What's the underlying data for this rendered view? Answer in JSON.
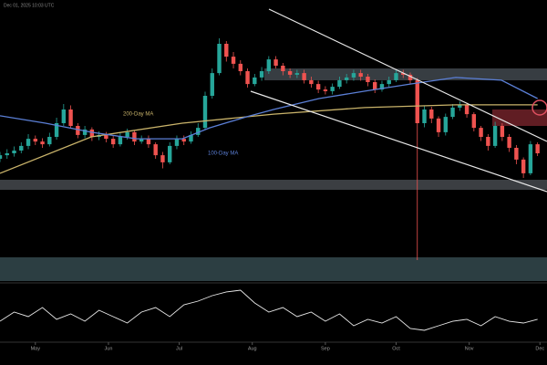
{
  "chart_data": {
    "type": "candlestick",
    "timestamp": "Dec 01, 2025 10:03 UTC",
    "x": [
      -15,
      -12,
      -9,
      -6,
      -3,
      0,
      3,
      6,
      9,
      12,
      15,
      18,
      21,
      24,
      27,
      30,
      33,
      36,
      39,
      42,
      45,
      48,
      51,
      54,
      57,
      60,
      63,
      66,
      69,
      72,
      75,
      78,
      81,
      84,
      87,
      90,
      93,
      96,
      99,
      102,
      105,
      108,
      111,
      114,
      117,
      120,
      123,
      126,
      129,
      132,
      135,
      138,
      141,
      144,
      147,
      150,
      153,
      156,
      159,
      162,
      165,
      168,
      171,
      174,
      177,
      180,
      183,
      186,
      189,
      192,
      195,
      198,
      201,
      204,
      207,
      210,
      213
    ],
    "open": [
      42,
      43.3,
      44,
      45,
      46.7,
      49.3,
      48.3,
      47.3,
      50,
      55,
      60,
      54,
      50.7,
      52.7,
      50,
      50.7,
      49.3,
      47.3,
      50,
      51.7,
      48.3,
      49.3,
      47.3,
      43.3,
      40.7,
      46.7,
      49.3,
      48.3,
      50.7,
      53.3,
      65,
      73.3,
      84,
      79.3,
      76.7,
      74,
      69.3,
      71.7,
      74,
      78.3,
      76,
      74,
      72.7,
      73.3,
      70.7,
      69.3,
      67.3,
      66.7,
      68.3,
      70.7,
      71.7,
      73.3,
      72,
      70,
      67.3,
      69.3,
      70.7,
      73.3,
      72.7,
      70.7,
      55,
      60,
      56.7,
      51.7,
      57.3,
      60.7,
      61.7,
      58.3,
      53.3,
      50,
      46.7,
      54,
      50,
      46,
      41.7,
      36.7,
      47.3
    ],
    "high": [
      44.5,
      45.5,
      46.5,
      48,
      51,
      50.5,
      49.5,
      51.5,
      57,
      62,
      61.5,
      55,
      54,
      53.5,
      52,
      51.8,
      50.5,
      51.5,
      53,
      52.5,
      50.5,
      50.5,
      48,
      44.5,
      48,
      50.5,
      50.5,
      52,
      55,
      66.5,
      75,
      86,
      85,
      81,
      78,
      75,
      73,
      75.5,
      79.5,
      79.5,
      77,
      75,
      74.5,
      74.5,
      72,
      70.5,
      68.5,
      69.5,
      72,
      73,
      74.5,
      74.5,
      73,
      71,
      70.5,
      72,
      74.5,
      74.5,
      73.5,
      71.5,
      61.5,
      61,
      57.5,
      58.5,
      62,
      63,
      62.5,
      59,
      54,
      51,
      55.5,
      55,
      51,
      47,
      42.5,
      48.5,
      48
    ],
    "low": [
      40.8,
      42,
      42.8,
      44,
      45.5,
      47,
      46,
      46.5,
      49,
      54,
      53,
      49.5,
      49.5,
      48.5,
      48.8,
      48,
      46,
      46.5,
      49,
      47,
      47.5,
      46,
      42,
      38.5,
      40,
      45.5,
      47,
      47.5,
      50,
      52.5,
      64,
      72.5,
      77.5,
      75,
      72.5,
      68,
      68.5,
      70.5,
      73,
      75,
      72.5,
      71.5,
      71.5,
      69.5,
      68,
      66,
      65.5,
      65.5,
      67.5,
      69.5,
      70.5,
      70.5,
      68.5,
      66,
      66.5,
      68,
      70,
      71.5,
      69.5,
      5,
      53.5,
      55,
      50,
      50.5,
      56.5,
      59.5,
      57,
      52,
      48.5,
      45,
      46,
      48.5,
      44.5,
      40,
      35,
      36,
      43
    ],
    "close": [
      43.3,
      44,
      45,
      46.7,
      49.3,
      48.3,
      47.3,
      50,
      55,
      60,
      54,
      50.7,
      52.7,
      50,
      50.7,
      49.3,
      47.3,
      50,
      51.7,
      48.3,
      49.3,
      47.3,
      43.3,
      40.7,
      46.7,
      49.3,
      48.3,
      50.7,
      53.3,
      65,
      73.3,
      84,
      79.3,
      76.7,
      74,
      69.3,
      71.7,
      74,
      78.3,
      76,
      74,
      72.7,
      73.3,
      70.7,
      69.3,
      67.3,
      66.7,
      68.3,
      70.7,
      71.7,
      73.3,
      72,
      70,
      67.3,
      69.3,
      70.7,
      73.3,
      72.7,
      70.7,
      55,
      60,
      56.7,
      51.7,
      57.3,
      60.7,
      61.7,
      58.3,
      53.3,
      50,
      46.7,
      54,
      50,
      46,
      41.7,
      36.7,
      47.3,
      44
    ],
    "up_color": "#26a69a",
    "down_color": "#ef5350",
    "xlim": [
      -15,
      217
    ],
    "xticks": [
      {
        "value": 0,
        "label": "May"
      },
      {
        "value": 31,
        "label": "Jun"
      },
      {
        "value": 61,
        "label": "Jul"
      },
      {
        "value": 92,
        "label": "Aug"
      },
      {
        "value": 123,
        "label": "Sep"
      },
      {
        "value": 153,
        "label": "Oct"
      },
      {
        "value": 184,
        "label": "Nov"
      },
      {
        "value": 214,
        "label": "Dec"
      }
    ],
    "ylim": [
      0,
      100
    ],
    "series": [
      {
        "name": "200-Day MA",
        "color": "#c9b36a",
        "x": [
          -15,
          23.7,
          62.3,
          101,
          139.7,
          178.3,
          213
        ],
        "values": [
          36.7,
          50,
          55,
          58.3,
          60.7,
          61.7,
          61.7
        ]
      },
      {
        "name": "100-Day MA",
        "color": "#5b7fd6",
        "x": [
          -15,
          4.3,
          23.7,
          43,
          62.3,
          73.9,
          89.4,
          101,
          120.3,
          139.7,
          159,
          178.3,
          197.7,
          213
        ],
        "values": [
          57.7,
          55,
          51.7,
          49.3,
          49.3,
          53.3,
          57.3,
          60,
          64,
          66.7,
          69.3,
          71.7,
          70.7,
          64
        ]
      }
    ],
    "oscillator": {
      "color": "#e8e8e8",
      "ylim": [
        0,
        100
      ],
      "x": [
        -15,
        -9,
        -3,
        3,
        9,
        15,
        21,
        27,
        33,
        39,
        45,
        51,
        57,
        63,
        69,
        75,
        81,
        87,
        93,
        99,
        105,
        111,
        117,
        123,
        129,
        135,
        141,
        147,
        153,
        159,
        165,
        171,
        177,
        183,
        189,
        195,
        201,
        207,
        213
      ],
      "values": [
        33.3,
        50,
        41.7,
        58.3,
        36.7,
        46.7,
        33.3,
        53.3,
        41.7,
        30,
        50,
        58.3,
        41.7,
        63.3,
        70,
        80,
        86.7,
        90,
        66.7,
        50,
        58.3,
        41.7,
        50,
        33.3,
        46.7,
        25,
        36.7,
        30,
        41.7,
        20,
        16.7,
        25,
        33.3,
        36.7,
        25,
        41.7,
        33.3,
        30,
        36.7
      ]
    }
  }
}
